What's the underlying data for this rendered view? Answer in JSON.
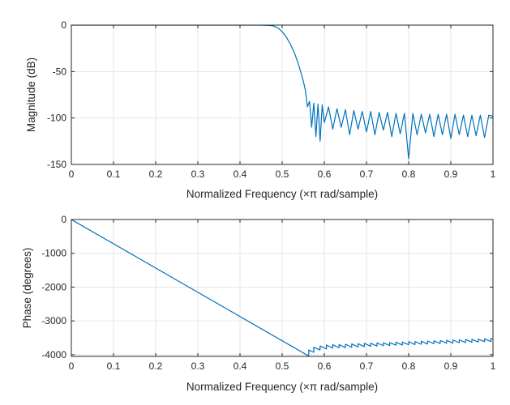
{
  "chart_data": [
    {
      "type": "line",
      "xlabel": "Normalized Frequency  (×π rad/sample)",
      "ylabel": "Magnitude (dB)",
      "xlim": [
        0,
        1
      ],
      "ylim": [
        -150,
        0
      ],
      "xticks": [
        0,
        0.1,
        0.2,
        0.3,
        0.4,
        0.5,
        0.6,
        0.7,
        0.8,
        0.9,
        1
      ],
      "xtick_labels": [
        "0",
        "0.1",
        "0.2",
        "0.3",
        "0.4",
        "0.5",
        "0.6",
        "0.7",
        "0.8",
        "0.9",
        "1"
      ],
      "yticks": [
        -150,
        -100,
        -50,
        0
      ],
      "ytick_labels": [
        "-150",
        "-100",
        "-50",
        "0"
      ],
      "grid": true,
      "line_color": "#0072BD",
      "series": [
        {
          "x": [
            0,
            0.45,
            0.47,
            0.48,
            0.49,
            0.5,
            0.51,
            0.52,
            0.53,
            0.54,
            0.55,
            0.555,
            0.56,
            0.565,
            0.57,
            0.575,
            0.58,
            0.585,
            0.59,
            0.595,
            0.6,
            0.61,
            0.62,
            0.63,
            0.64,
            0.65,
            0.66,
            0.67,
            0.68,
            0.69,
            0.7,
            0.71,
            0.72,
            0.73,
            0.74,
            0.75,
            0.76,
            0.77,
            0.78,
            0.79,
            0.8,
            0.81,
            0.82,
            0.83,
            0.84,
            0.85,
            0.86,
            0.87,
            0.88,
            0.89,
            0.9,
            0.91,
            0.92,
            0.93,
            0.94,
            0.95,
            0.96,
            0.97,
            0.98,
            0.99,
            1.0
          ],
          "y": [
            0,
            0,
            -0.3,
            -1,
            -3,
            -7,
            -13,
            -21,
            -31,
            -44,
            -60,
            -70,
            -88,
            -82,
            -110,
            -84,
            -120,
            -85,
            -125,
            -86,
            -105,
            -88,
            -112,
            -90,
            -110,
            -91,
            -118,
            -92,
            -112,
            -93,
            -115,
            -93,
            -118,
            -94,
            -113,
            -94,
            -120,
            -95,
            -117,
            -95,
            -144,
            -95,
            -118,
            -96,
            -116,
            -96,
            -120,
            -96,
            -118,
            -96,
            -122,
            -96,
            -118,
            -97,
            -120,
            -97,
            -119,
            -97,
            -121,
            -97,
            -98
          ]
        }
      ]
    },
    {
      "type": "line",
      "xlabel": "Normalized Frequency  (×π rad/sample)",
      "ylabel": "Phase (degrees)",
      "xlim": [
        0,
        1
      ],
      "ylim": [
        -4050,
        0
      ],
      "xticks": [
        0,
        0.1,
        0.2,
        0.3,
        0.4,
        0.5,
        0.6,
        0.7,
        0.8,
        0.9,
        1
      ],
      "xtick_labels": [
        "0",
        "0.1",
        "0.2",
        "0.3",
        "0.4",
        "0.5",
        "0.6",
        "0.7",
        "0.8",
        "0.9",
        "1"
      ],
      "yticks": [
        -4000,
        -3000,
        -2000,
        -1000,
        0
      ],
      "ytick_labels": [
        "-4000",
        "-3000",
        "-2000",
        "-1000",
        "0"
      ],
      "grid": true,
      "line_color": "#0072BD",
      "series": [
        {
          "x": [
            0,
            0.563,
            0.563,
            0.575,
            0.575,
            0.59,
            0.59,
            0.605,
            0.605,
            0.62,
            0.62,
            0.635,
            0.635,
            0.65,
            0.65,
            0.665,
            0.665,
            0.68,
            0.68,
            0.695,
            0.695,
            0.71,
            0.71,
            0.725,
            0.725,
            0.74,
            0.74,
            0.755,
            0.755,
            0.77,
            0.77,
            0.785,
            0.785,
            0.8,
            0.8,
            0.815,
            0.815,
            0.83,
            0.83,
            0.845,
            0.845,
            0.86,
            0.86,
            0.875,
            0.875,
            0.89,
            0.89,
            0.905,
            0.905,
            0.92,
            0.92,
            0.935,
            0.935,
            0.95,
            0.95,
            0.965,
            0.965,
            0.98,
            0.98,
            0.995,
            0.995,
            1.0
          ],
          "y": [
            0,
            -4040,
            -3860,
            -3930,
            -3780,
            -3860,
            -3740,
            -3830,
            -3715,
            -3805,
            -3705,
            -3795,
            -3700,
            -3790,
            -3690,
            -3780,
            -3680,
            -3770,
            -3675,
            -3760,
            -3665,
            -3750,
            -3660,
            -3745,
            -3650,
            -3735,
            -3645,
            -3730,
            -3640,
            -3720,
            -3630,
            -3715,
            -3625,
            -3705,
            -3615,
            -3700,
            -3610,
            -3690,
            -3600,
            -3685,
            -3595,
            -3675,
            -3590,
            -3670,
            -3580,
            -3660,
            -3575,
            -3655,
            -3565,
            -3645,
            -3560,
            -3640,
            -3550,
            -3630,
            -3545,
            -3625,
            -3540,
            -3615,
            -3530,
            -3610,
            -3520,
            -3550
          ]
        }
      ]
    }
  ]
}
